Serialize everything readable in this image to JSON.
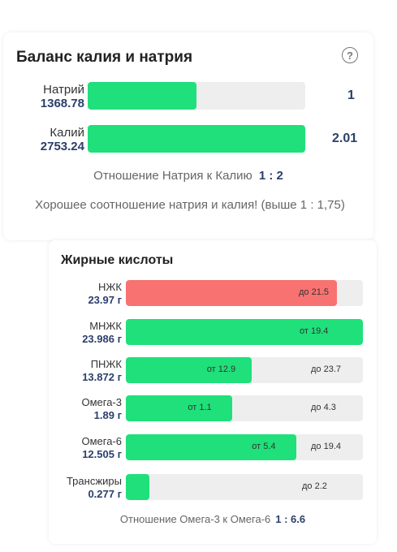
{
  "colors": {
    "green": "#1fe07a",
    "red": "#f87272",
    "track": "#eeeeee",
    "value": "#2b3f6b"
  },
  "balance": {
    "title": "Баланс калия и натрия",
    "help": "?",
    "sodium": {
      "name": "Натрий",
      "value": "1368.78",
      "ratio": "1",
      "fill_fraction": 0.5
    },
    "potassium": {
      "name": "Калий",
      "value": "2753.24",
      "ratio": "2.01",
      "fill_fraction": 1.0
    },
    "ratio_label": "Отношение Натрия к Калию",
    "ratio_value": "1 : 2",
    "message": "Хорошее соотношение натрия и калия! (выше 1 : 1,75)"
  },
  "fatty": {
    "title": "Жирные кислоты",
    "items": [
      {
        "name": "НЖК",
        "value": "23.97 г",
        "fill_fraction": 0.89,
        "color": "#f87272",
        "from": "",
        "to": "до 21.5"
      },
      {
        "name": "МНЖК",
        "value": "23.986 г",
        "fill_fraction": 1.0,
        "color": "#1fe07a",
        "from": "от 19.4",
        "to": ""
      },
      {
        "name": "ПНЖК",
        "value": "13.872 г",
        "fill_fraction": 0.53,
        "color": "#1fe07a",
        "from": "от 12.9",
        "to": "до 23.7"
      },
      {
        "name": "Омега-3",
        "value": "1.89 г",
        "fill_fraction": 0.45,
        "color": "#1fe07a",
        "from": "от 1.1",
        "to": "до 4.3"
      },
      {
        "name": "Омега-6",
        "value": "12.505 г",
        "fill_fraction": 0.72,
        "color": "#1fe07a",
        "from": "от 5.4",
        "to": "до 19.4"
      },
      {
        "name": "Трансжиры",
        "value": "0.277 г",
        "fill_fraction": 0.1,
        "color": "#1fe07a",
        "from": "",
        "to": "до 2.2"
      }
    ],
    "ratio_label": "Отношение Омега-3 к Омега-6",
    "ratio_value": "1 : 6.6"
  }
}
